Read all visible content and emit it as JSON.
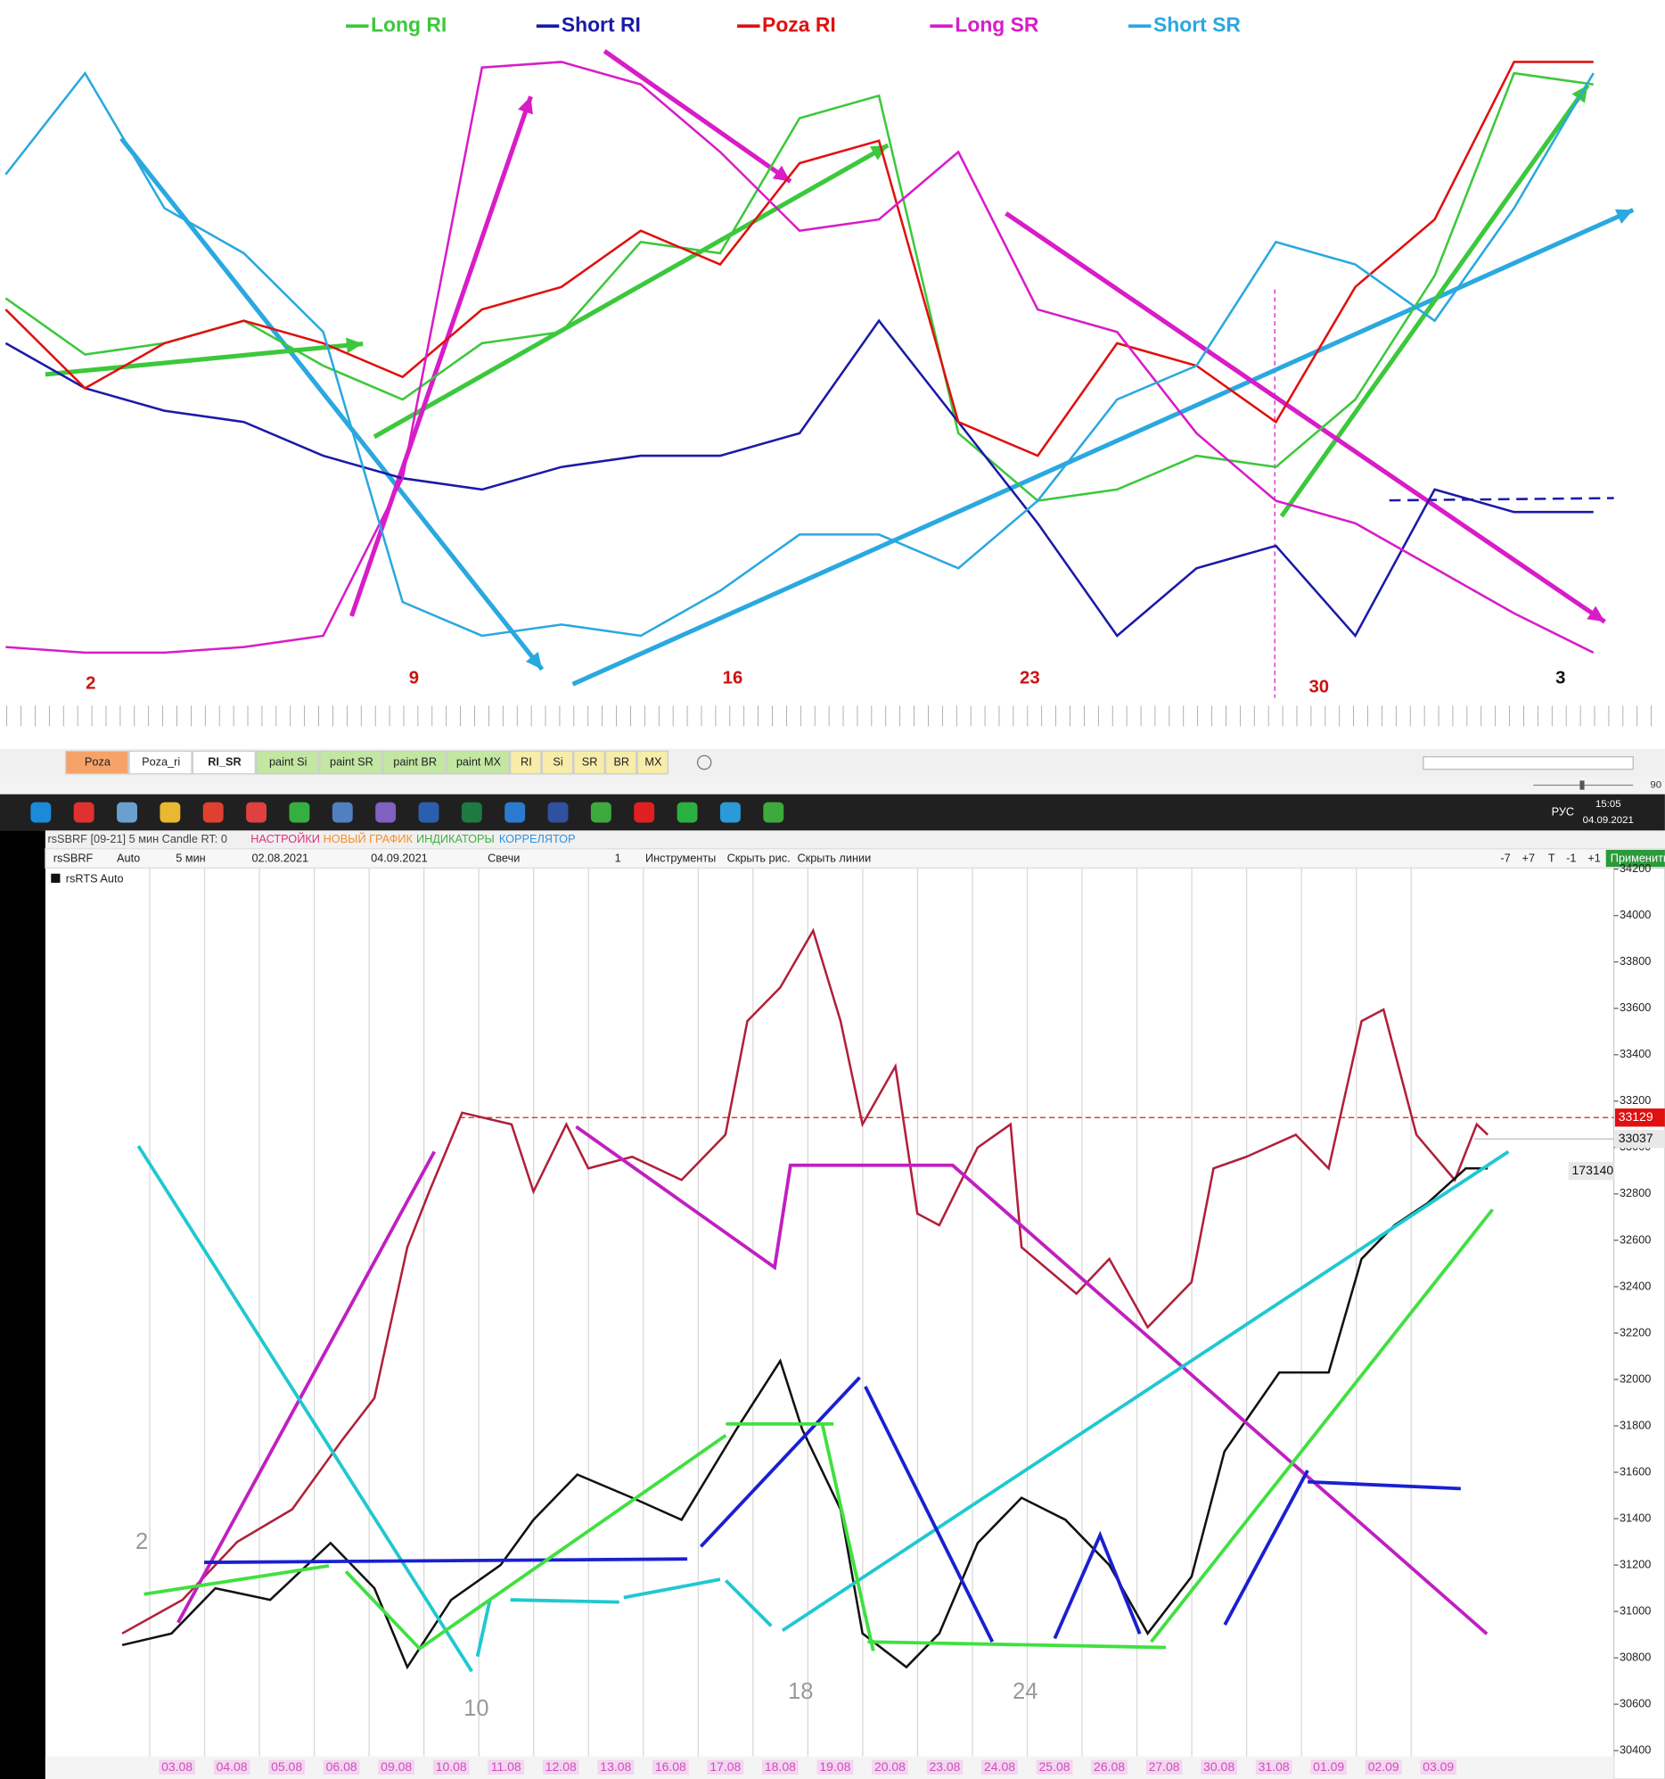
{
  "chart_data": [
    {
      "type": "line",
      "ylim": [
        0,
        60
      ],
      "series": [
        {
          "name": "Long RI",
          "color": "#3cc83c",
          "values": [
            34,
            29,
            30,
            32,
            28,
            25,
            30,
            31,
            39,
            38,
            50,
            52,
            22,
            16,
            17,
            20,
            19,
            25,
            36,
            54,
            53
          ]
        },
        {
          "name": "Short RI",
          "color": "#1a1aa8",
          "values": [
            30,
            26,
            24,
            23,
            20,
            18,
            17,
            19,
            20,
            20,
            22,
            32,
            23,
            14,
            4,
            10,
            12,
            4,
            17,
            15,
            15
          ]
        },
        {
          "name": "Poza  RI",
          "color": "#e01010",
          "values": [
            33,
            26,
            30,
            32,
            30,
            27,
            33,
            35,
            40,
            37,
            46,
            48,
            23,
            20,
            30,
            28,
            23,
            35,
            41,
            55,
            55
          ]
        },
        {
          "name": "Long SR",
          "color": "#d81cc8",
          "values": [
            3,
            2.5,
            2.5,
            3,
            4,
            18,
            54.5,
            55,
            53,
            47,
            40,
            41,
            47,
            33,
            31,
            22,
            16,
            14,
            10,
            6,
            2.5
          ]
        },
        {
          "name": "Short SR",
          "color": "#2aa8e0",
          "values": [
            45,
            54,
            42,
            38,
            31,
            7,
            4,
            5,
            4,
            8,
            13,
            13,
            10,
            16,
            25,
            28,
            39,
            37,
            32,
            42,
            54
          ]
        }
      ],
      "annotations": [
        {
          "text": "2",
          "color": "#d01010"
        },
        {
          "text": "9",
          "color": "#d01010"
        },
        {
          "text": "16",
          "color": "#d01010"
        },
        {
          "text": "23",
          "color": "#d01010"
        },
        {
          "text": "30",
          "color": "#d01010"
        },
        {
          "text": "3",
          "color": "#111111"
        }
      ]
    },
    {
      "type": "line",
      "title": "rsSBRF [09-21] 5 мин Candle RT: 0",
      "categories": [
        "03.08",
        "04.08",
        "05.08",
        "06.08",
        "09.08",
        "10.08",
        "11.08",
        "12.08",
        "13.08",
        "16.08",
        "17.08",
        "18.08",
        "19.08",
        "20.08",
        "23.08",
        "24.08",
        "25.08",
        "26.08",
        "27.08",
        "30.08",
        "31.08",
        "01.09",
        "02.09",
        "03.09"
      ],
      "xlim": [
        -2.4,
        26.2
      ],
      "ylim": [
        30375,
        34205
      ],
      "yticks": [
        30400,
        30600,
        30800,
        31000,
        31200,
        31400,
        31600,
        31800,
        32000,
        32200,
        32400,
        32600,
        32800,
        33000,
        33200,
        33400,
        33600,
        33800,
        34000,
        34200
      ],
      "series": [
        {
          "color": "#b0203a",
          "x": [
            -1.0,
            0.1,
            1.1,
            2.1,
            3.0,
            3.6,
            4.2,
            4.6,
            5.2,
            6.1,
            6.5,
            7.1,
            7.5,
            8.3,
            9.2,
            10.0,
            10.4,
            11.0,
            11.6,
            12.1,
            12.5,
            13.1,
            13.5,
            13.9,
            14.6,
            15.2,
            15.4,
            16.4,
            17.0,
            17.7,
            18.5,
            18.9,
            19.5,
            20.4,
            21.0,
            21.6,
            22.0,
            22.6,
            23.3,
            23.7,
            23.9
          ],
          "values": [
            30905,
            31050,
            31300,
            31440,
            31735,
            31920,
            32570,
            32810,
            33150,
            33100,
            32810,
            33100,
            32910,
            32960,
            32860,
            33055,
            33545,
            33690,
            33935,
            33545,
            33100,
            33350,
            32715,
            32665,
            33000,
            33100,
            32570,
            32370,
            32520,
            32225,
            32420,
            32910,
            32960,
            33055,
            32910,
            33545,
            33595,
            33055,
            32860,
            33100,
            33055
          ]
        },
        {
          "name": "rsRTS Auto",
          "color": "#111111",
          "x": [
            -1.0,
            -0.1,
            0.7,
            1.7,
            2.8,
            3.6,
            4.2,
            5.0,
            5.9,
            6.5,
            7.3,
            8.3,
            9.2,
            10.2,
            11.0,
            11.4,
            12.1,
            12.5,
            13.3,
            13.9,
            14.6,
            15.4,
            16.2,
            17.0,
            17.7,
            18.5,
            19.1,
            20.1,
            21.0,
            21.6,
            22.2,
            22.8,
            23.5,
            23.9
          ],
          "values": [
            30855,
            30905,
            31100,
            31050,
            31295,
            31100,
            30760,
            31050,
            31200,
            31395,
            31590,
            31490,
            31395,
            31785,
            32080,
            31785,
            31440,
            30905,
            30760,
            30905,
            31295,
            31490,
            31395,
            31200,
            30905,
            31150,
            31690,
            32030,
            32030,
            32520,
            32665,
            32760,
            32910,
            32910
          ]
        }
      ],
      "price_line": 33129,
      "last_price": 33037,
      "rts_price": "173140",
      "annotations": [
        "2",
        "10",
        "18",
        "24"
      ]
    }
  ],
  "tabs": [
    "Poza",
    "Poza_ri",
    "RI_SR",
    "paint Si",
    "paint SR",
    "paint BR",
    "paint MX",
    "RI",
    "Si",
    "SR",
    "BR",
    "MX"
  ],
  "status": {
    "zoom": "90"
  },
  "taskbar": {
    "lang": "РУС",
    "time": "15:05",
    "date": "04.09.2021"
  },
  "window": {
    "menu": [
      "НАСТРОЙКИ",
      "НОВЫЙ ГРАФИК",
      "ИНДИКАТОРЫ",
      "КОРРЕЛЯТОР"
    ],
    "toolbar": [
      "rsSBRF",
      "Auto",
      "5 мин",
      "02.08.2021",
      "04.09.2021",
      "Свечи",
      "1",
      "Инструменты",
      "Скрыть рис.",
      "Скрыть линии",
      "-7",
      "+7",
      "T",
      "-1",
      "+1",
      "Применить"
    ]
  }
}
